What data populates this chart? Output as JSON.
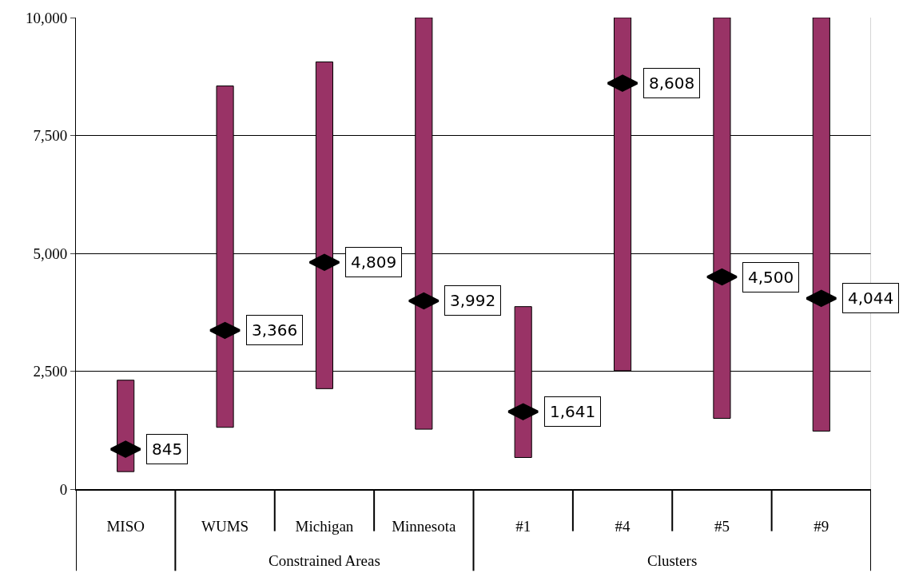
{
  "chart_data": {
    "type": "bar",
    "categories": [
      "MISO",
      "WUMS",
      "Michigan",
      "Minnesota",
      "#1",
      "#4",
      "#5",
      "#9"
    ],
    "base": [
      370,
      1310,
      2130,
      1270,
      670,
      2510,
      1500,
      1230
    ],
    "values": [
      1940,
      7240,
      6930,
      8730,
      3200,
      7490,
      8500,
      8770
    ],
    "color": "#993366",
    "series": [
      {
        "type": "scatter",
        "color": "#000000",
        "values": [
          845,
          3366,
          4809,
          3992,
          1641,
          8608,
          4500,
          4044
        ],
        "value_labels": [
          "845",
          "3,366",
          "4,809",
          "3,992",
          "1,641",
          "8,608",
          "4,500",
          "4,044"
        ]
      }
    ],
    "annotations": [
      "Constrained Areas",
      "Clusters"
    ],
    "ylim": [
      0,
      10000
    ],
    "yticks": [
      {
        "value": 0,
        "label": "0"
      },
      {
        "value": 2500,
        "label": "2,500"
      },
      {
        "value": 5000,
        "label": "5,000"
      },
      {
        "value": 7500,
        "label": "7,500"
      },
      {
        "value": 10000,
        "label": "10,000"
      }
    ],
    "grid": "y"
  }
}
